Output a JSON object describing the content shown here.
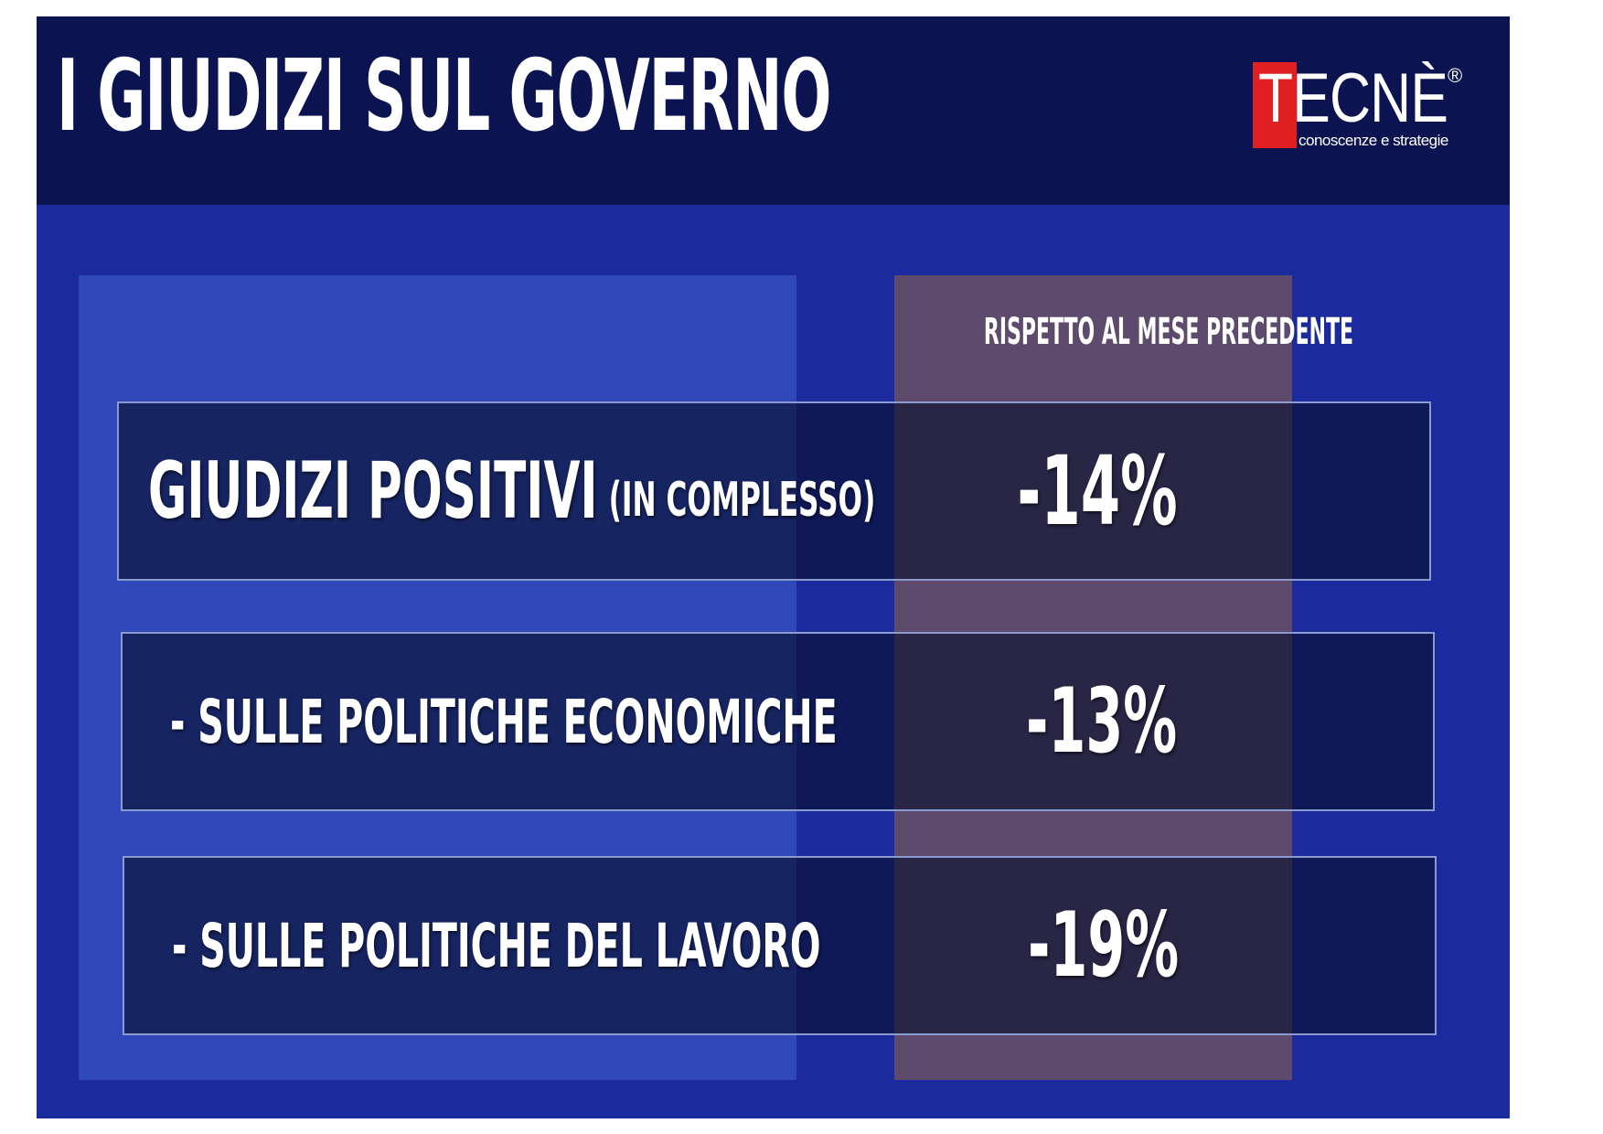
{
  "title": "I GIUDIZI SUL GOVERNO",
  "logo": {
    "name": "TECNÈ",
    "registered": "®",
    "tagline": "conoscenze e strategie"
  },
  "colors": {
    "header_bg": "#0b1450",
    "slide_bg": "#1b2a9c",
    "left_panel": "#2f47b8",
    "value_column": "#5e4a6c",
    "logo_red": "#e02020"
  },
  "chart_data": {
    "type": "table",
    "title": "I GIUDIZI SUL GOVERNO",
    "column_header": "RISPETTO AL MESE PRECEDENTE",
    "rows": [
      {
        "label": "GIUDIZI POSITIVI",
        "sublabel": "(IN COMPLESSO)",
        "value": "-14%"
      },
      {
        "label": "-  SULLE POLITICHE ECONOMICHE",
        "value": "-13%"
      },
      {
        "label": "-  SULLE POLITICHE DEL LAVORO",
        "value": "-19%"
      }
    ]
  }
}
